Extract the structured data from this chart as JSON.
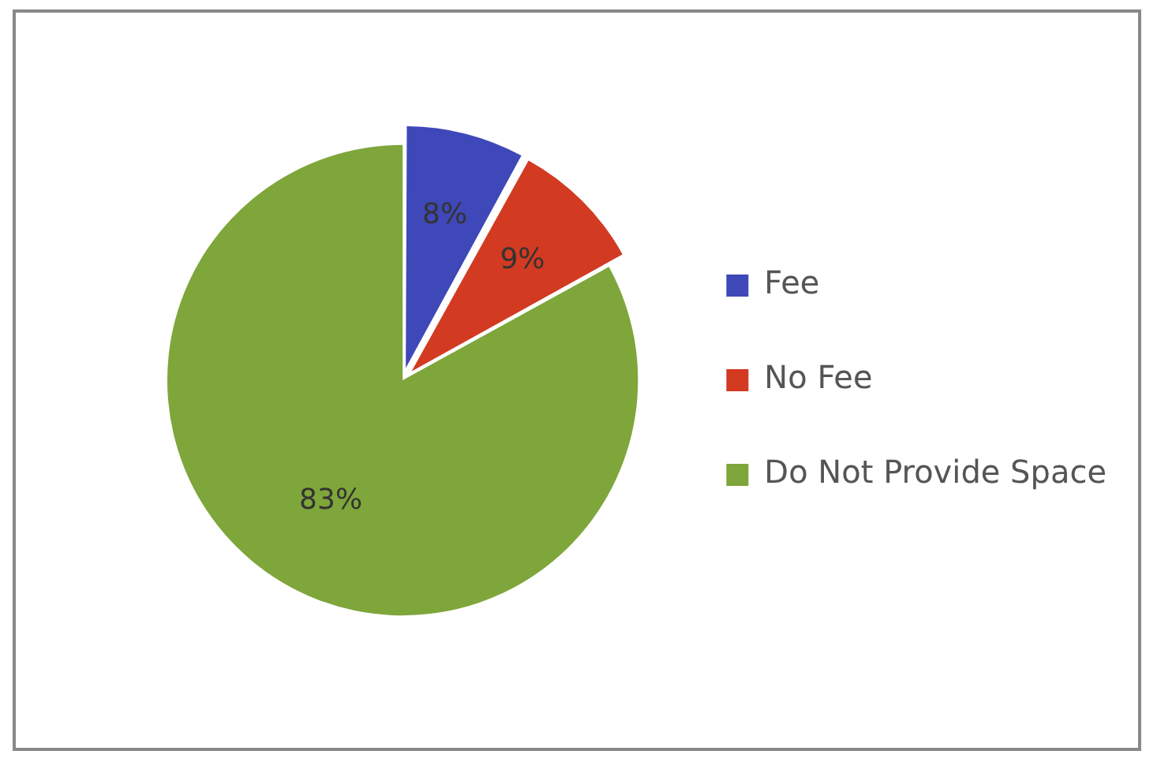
{
  "chart_data": {
    "type": "pie",
    "categories": [
      "Fee",
      "No Fee",
      "Do Not Provide Space"
    ],
    "values": [
      8,
      9,
      83
    ],
    "colors": [
      "#3f48b8",
      "#d23a22",
      "#7ea63a"
    ],
    "value_labels": [
      "8%",
      "9%",
      "83%"
    ],
    "legend": "right"
  }
}
